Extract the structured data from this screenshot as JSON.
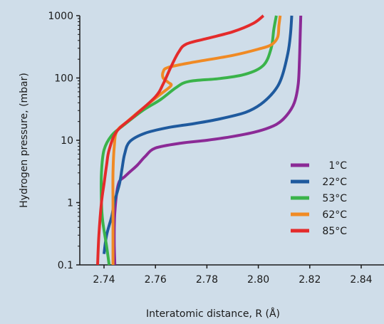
{
  "chart_data": {
    "type": "line",
    "title": "",
    "xlabel": "Interatomic distance, R (Å)",
    "ylabel": "Hydrogen pressure, (mbar)",
    "xlim": [
      2.735,
      2.845
    ],
    "ylim": [
      0.1,
      1000
    ],
    "yscale": "log",
    "grid": false,
    "legend_position": "right",
    "x_ticks": [
      2.74,
      2.76,
      2.78,
      2.8,
      2.82,
      2.84
    ],
    "x_tick_labels": [
      "2.74",
      "2.76",
      "2.78",
      "2.80",
      "2.82",
      "2.84"
    ],
    "y_ticks": [
      0.1,
      1,
      10,
      100,
      1000
    ],
    "y_tick_labels": [
      "0.1",
      "1",
      "10",
      "100",
      "1000"
    ],
    "series": [
      {
        "name": "1°C",
        "color": "#8b2a96",
        "points": [
          [
            2.7442,
            0.1
          ],
          [
            2.744,
            0.2
          ],
          [
            2.744,
            0.4
          ],
          [
            2.7442,
            0.7
          ],
          [
            2.745,
            1.5
          ],
          [
            2.746,
            2.2
          ],
          [
            2.748,
            2.6
          ],
          [
            2.75,
            3.1
          ],
          [
            2.753,
            4.0
          ],
          [
            2.756,
            5.5
          ],
          [
            2.76,
            7.5
          ],
          [
            2.77,
            9.0
          ],
          [
            2.78,
            10.0
          ],
          [
            2.79,
            11.5
          ],
          [
            2.8,
            14.0
          ],
          [
            2.807,
            18.0
          ],
          [
            2.811,
            25.0
          ],
          [
            2.814,
            40.0
          ],
          [
            2.8155,
            80.0
          ],
          [
            2.816,
            200.0
          ],
          [
            2.8163,
            500.0
          ],
          [
            2.8165,
            1000.0
          ]
        ]
      },
      {
        "name": "22°C",
        "color": "#1f5a9e",
        "points": [
          [
            2.74,
            0.15
          ],
          [
            2.741,
            0.3
          ],
          [
            2.743,
            0.6
          ],
          [
            2.744,
            1.0
          ],
          [
            2.746,
            2.0
          ],
          [
            2.747,
            3.5
          ],
          [
            2.748,
            6.0
          ],
          [
            2.75,
            9.5
          ],
          [
            2.756,
            13.0
          ],
          [
            2.765,
            16.0
          ],
          [
            2.775,
            18.5
          ],
          [
            2.785,
            22.0
          ],
          [
            2.795,
            28.0
          ],
          [
            2.801,
            38.0
          ],
          [
            2.806,
            60.0
          ],
          [
            2.809,
            100.0
          ],
          [
            2.8115,
            250.0
          ],
          [
            2.8125,
            500.0
          ],
          [
            2.813,
            1000.0
          ]
        ]
      },
      {
        "name": "53°C",
        "color": "#3ab34a",
        "points": [
          [
            2.742,
            0.1
          ],
          [
            2.741,
            0.2
          ],
          [
            2.7395,
            0.5
          ],
          [
            2.739,
            1.0
          ],
          [
            2.739,
            3.0
          ],
          [
            2.74,
            7.0
          ],
          [
            2.743,
            12.0
          ],
          [
            2.748,
            18.0
          ],
          [
            2.755,
            30.0
          ],
          [
            2.762,
            45.0
          ],
          [
            2.768,
            70.0
          ],
          [
            2.773,
            88.0
          ],
          [
            2.785,
            98.0
          ],
          [
            2.795,
            115.0
          ],
          [
            2.802,
            160.0
          ],
          [
            2.805,
            300.0
          ],
          [
            2.806,
            600.0
          ],
          [
            2.807,
            1000.0
          ]
        ]
      },
      {
        "name": "62°C",
        "color": "#f08a24",
        "points": [
          [
            2.7435,
            0.1
          ],
          [
            2.7435,
            0.5
          ],
          [
            2.7435,
            1.0
          ],
          [
            2.7435,
            3.0
          ],
          [
            2.744,
            8.0
          ],
          [
            2.745,
            14.0
          ],
          [
            2.749,
            20.0
          ],
          [
            2.756,
            35.0
          ],
          [
            2.762,
            55.0
          ],
          [
            2.766,
            75.0
          ],
          [
            2.765,
            85.0
          ],
          [
            2.763,
            100.0
          ],
          [
            2.763,
            125.0
          ],
          [
            2.765,
            148.0
          ],
          [
            2.775,
            180.0
          ],
          [
            2.79,
            230.0
          ],
          [
            2.8,
            290.0
          ],
          [
            2.805,
            340.0
          ],
          [
            2.8075,
            450.0
          ],
          [
            2.808,
            700.0
          ],
          [
            2.8085,
            1000.0
          ]
        ]
      },
      {
        "name": "85°C",
        "color": "#e42b2b",
        "points": [
          [
            2.7375,
            0.1
          ],
          [
            2.738,
            0.3
          ],
          [
            2.739,
            1.0
          ],
          [
            2.74,
            2.0
          ],
          [
            2.741,
            4.0
          ],
          [
            2.742,
            7.0
          ],
          [
            2.745,
            14.0
          ],
          [
            2.752,
            25.0
          ],
          [
            2.76,
            50.0
          ],
          [
            2.763,
            80.0
          ],
          [
            2.766,
            150.0
          ],
          [
            2.769,
            260.0
          ],
          [
            2.772,
            350.0
          ],
          [
            2.78,
            430.0
          ],
          [
            2.79,
            550.0
          ],
          [
            2.798,
            750.0
          ],
          [
            2.802,
            1000.0
          ]
        ]
      }
    ]
  }
}
